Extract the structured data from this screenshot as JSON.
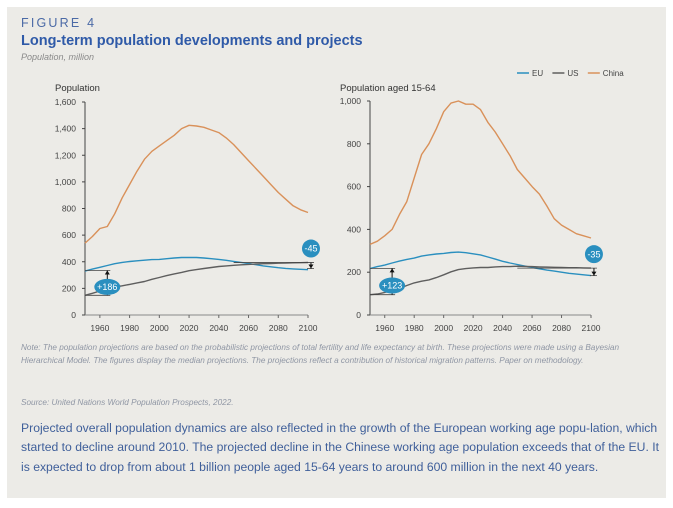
{
  "figure": {
    "label": "FIGURE 4",
    "title": "Long-term population developments and projects",
    "subtitle": "Population, million"
  },
  "legend": [
    {
      "name": "EU",
      "color": "#2a8fbf"
    },
    {
      "name": "US",
      "color": "#5e5e5e"
    },
    {
      "name": "China",
      "color": "#d9915a"
    }
  ],
  "chart_data": [
    {
      "type": "line",
      "title": "Population",
      "xlabel": "",
      "ylabel": "",
      "xlim": [
        1950,
        2100
      ],
      "ylim": [
        0,
        1600
      ],
      "x_ticks": [
        "1960",
        "1980",
        "2000",
        "2020",
        "2040",
        "2060",
        "2080",
        "2100"
      ],
      "y_ticks": [
        "0",
        "200",
        "400",
        "600",
        "800",
        "1,000",
        "1,200",
        "1,400",
        "1,600"
      ],
      "y_tick_values": [
        0,
        200,
        400,
        600,
        800,
        1000,
        1200,
        1400,
        1600
      ],
      "x": [
        1950,
        1955,
        1960,
        1965,
        1970,
        1975,
        1980,
        1985,
        1990,
        1995,
        2000,
        2005,
        2010,
        2015,
        2020,
        2025,
        2030,
        2035,
        2040,
        2045,
        2050,
        2055,
        2060,
        2065,
        2070,
        2075,
        2080,
        2085,
        2090,
        2095,
        2100
      ],
      "series": [
        {
          "name": "EU",
          "color": "#2a8fbf",
          "values": [
            330,
            345,
            358,
            372,
            385,
            395,
            402,
            407,
            412,
            416,
            418,
            423,
            428,
            432,
            433,
            432,
            428,
            423,
            418,
            411,
            403,
            395,
            387,
            378,
            369,
            362,
            355,
            350,
            346,
            343,
            340
          ]
        },
        {
          "name": "US",
          "color": "#5e5e5e",
          "values": [
            148,
            163,
            180,
            195,
            210,
            219,
            230,
            241,
            252,
            268,
            282,
            296,
            309,
            320,
            333,
            341,
            349,
            357,
            364,
            369,
            373,
            377,
            380,
            383,
            385,
            387,
            389,
            390,
            392,
            393,
            394
          ]
        },
        {
          "name": "China",
          "color": "#d9915a",
          "values": [
            540,
            590,
            650,
            665,
            760,
            880,
            980,
            1080,
            1170,
            1230,
            1270,
            1310,
            1350,
            1400,
            1425,
            1420,
            1410,
            1390,
            1370,
            1330,
            1280,
            1220,
            1160,
            1100,
            1040,
            980,
            920,
            870,
            820,
            790,
            770
          ]
        }
      ],
      "annotations": [
        {
          "label": "+186",
          "x": 1965,
          "from": 148,
          "to": 334,
          "direction": "up"
        },
        {
          "label": "-45",
          "x": 2102,
          "from": 394,
          "to": 349,
          "direction": "down"
        }
      ]
    },
    {
      "type": "line",
      "title": "Population aged 15-64",
      "xlabel": "",
      "ylabel": "",
      "xlim": [
        1950,
        2100
      ],
      "ylim": [
        0,
        1000
      ],
      "x_ticks": [
        "1960",
        "1980",
        "2000",
        "2020",
        "2040",
        "2060",
        "2080",
        "2100"
      ],
      "y_ticks": [
        "0",
        "200",
        "400",
        "600",
        "800",
        "1,000"
      ],
      "y_tick_values": [
        0,
        200,
        400,
        600,
        800,
        1000
      ],
      "x": [
        1950,
        1955,
        1960,
        1965,
        1970,
        1975,
        1980,
        1985,
        1990,
        1995,
        2000,
        2005,
        2010,
        2015,
        2020,
        2025,
        2030,
        2035,
        2040,
        2045,
        2050,
        2055,
        2060,
        2065,
        2070,
        2075,
        2080,
        2085,
        2090,
        2095,
        2100
      ],
      "series": [
        {
          "name": "EU",
          "color": "#2a8fbf",
          "values": [
            217,
            226,
            233,
            243,
            252,
            260,
            266,
            275,
            281,
            285,
            288,
            292,
            294,
            291,
            286,
            281,
            271,
            261,
            251,
            243,
            236,
            229,
            222,
            216,
            210,
            205,
            200,
            195,
            191,
            188,
            184
          ]
        },
        {
          "name": "US",
          "color": "#5e5e5e",
          "values": [
            95,
            98,
            105,
            115,
            125,
            138,
            150,
            158,
            164,
            175,
            188,
            202,
            212,
            217,
            220,
            222,
            222,
            225,
            226,
            226,
            228,
            227,
            226,
            225,
            224,
            223,
            222,
            221,
            221,
            220,
            219
          ]
        },
        {
          "name": "China",
          "color": "#d9915a",
          "values": [
            330,
            345,
            370,
            400,
            470,
            530,
            640,
            750,
            800,
            870,
            950,
            990,
            1000,
            985,
            985,
            960,
            900,
            855,
            800,
            745,
            680,
            640,
            600,
            565,
            510,
            450,
            420,
            400,
            380,
            370,
            360
          ]
        }
      ],
      "annotations": [
        {
          "label": "+123",
          "x": 1965,
          "from": 95,
          "to": 218,
          "direction": "up"
        },
        {
          "label": "-35",
          "x": 2102,
          "from": 219,
          "to": 184,
          "direction": "down"
        }
      ]
    }
  ],
  "note": "Note: The population projections are based on the probabilistic projections of total fertility and life expectancy at birth. These projections were made using a Bayesian Hierarchical Model. The figures display the median projections. The projections reflect a contribution of historical migration patterns. Paper on methodology.",
  "source": "Source: United Nations World Population Prospects, 2022.",
  "body_text": "Projected overall population dynamics are also reflected in the growth of the European working age popu-lation, which started to decline around 2010. The projected decline in the Chinese working age population exceeds that of the EU. It is expected to drop from about 1 billion people aged 15-64 years to around 600 million in the next 40 years."
}
